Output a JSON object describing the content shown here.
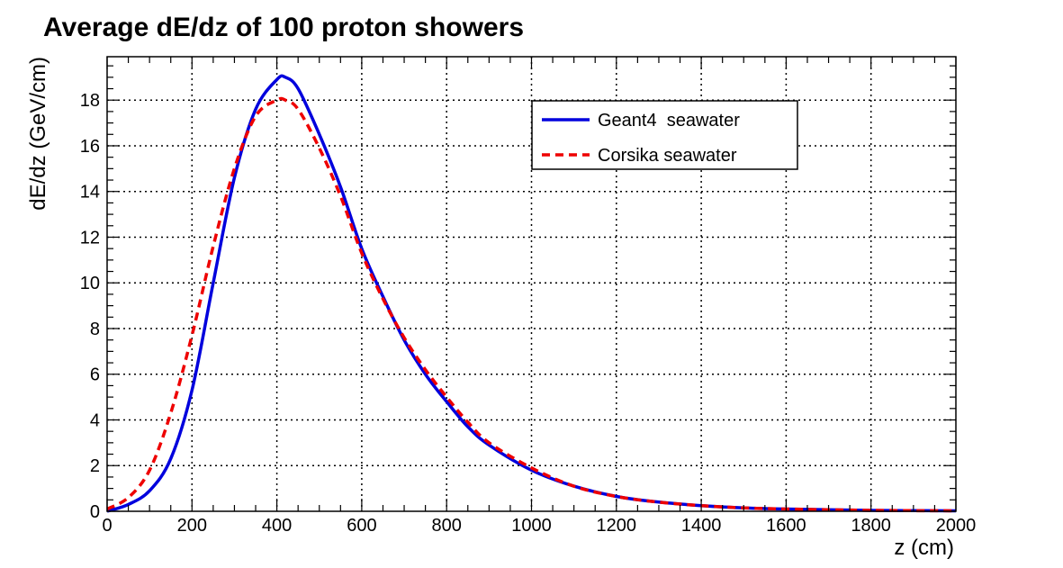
{
  "chart_data": {
    "type": "line",
    "title": "Average dE/dz of 100 proton showers",
    "xlabel": "z (cm)",
    "ylabel": "dE/dz (GeV/cm)",
    "xlim": [
      0,
      2000
    ],
    "ylim": [
      0,
      19.9
    ],
    "x_ticks": [
      0,
      200,
      400,
      600,
      800,
      1000,
      1200,
      1400,
      1600,
      1800,
      2000
    ],
    "y_ticks": [
      0,
      2,
      4,
      6,
      8,
      10,
      12,
      14,
      16,
      18
    ],
    "grid": true,
    "legend_position": "top-right",
    "series": [
      {
        "name": "Geant4  seawater",
        "color": "#0000dd",
        "style": "solid",
        "x": [
          0,
          50,
          100,
          150,
          200,
          250,
          300,
          350,
          400,
          420,
          450,
          500,
          550,
          600,
          650,
          700,
          750,
          800,
          850,
          900,
          1000,
          1100,
          1200,
          1300,
          1400,
          1500,
          1600,
          1800,
          2000
        ],
        "y": [
          0.0,
          0.3,
          0.9,
          2.3,
          5.3,
          10.0,
          14.6,
          17.6,
          18.9,
          19.0,
          18.5,
          16.5,
          14.2,
          11.5,
          9.4,
          7.5,
          6.0,
          4.8,
          3.7,
          2.9,
          1.8,
          1.1,
          0.65,
          0.4,
          0.25,
          0.15,
          0.1,
          0.04,
          0.02
        ]
      },
      {
        "name": "Corsika seawater",
        "color": "#ee0000",
        "style": "dashed",
        "x": [
          0,
          50,
          100,
          150,
          200,
          250,
          300,
          350,
          400,
          420,
          450,
          500,
          550,
          600,
          650,
          700,
          750,
          800,
          850,
          900,
          1000,
          1100,
          1200,
          1300,
          1400,
          1500,
          1600,
          1800,
          2000
        ],
        "y": [
          0.1,
          0.6,
          1.8,
          4.3,
          7.7,
          11.6,
          15.0,
          17.3,
          18.0,
          18.0,
          17.6,
          15.9,
          13.8,
          11.3,
          9.3,
          7.6,
          6.2,
          5.0,
          3.9,
          3.0,
          1.9,
          1.1,
          0.65,
          0.4,
          0.25,
          0.15,
          0.1,
          0.04,
          0.02
        ]
      }
    ]
  }
}
